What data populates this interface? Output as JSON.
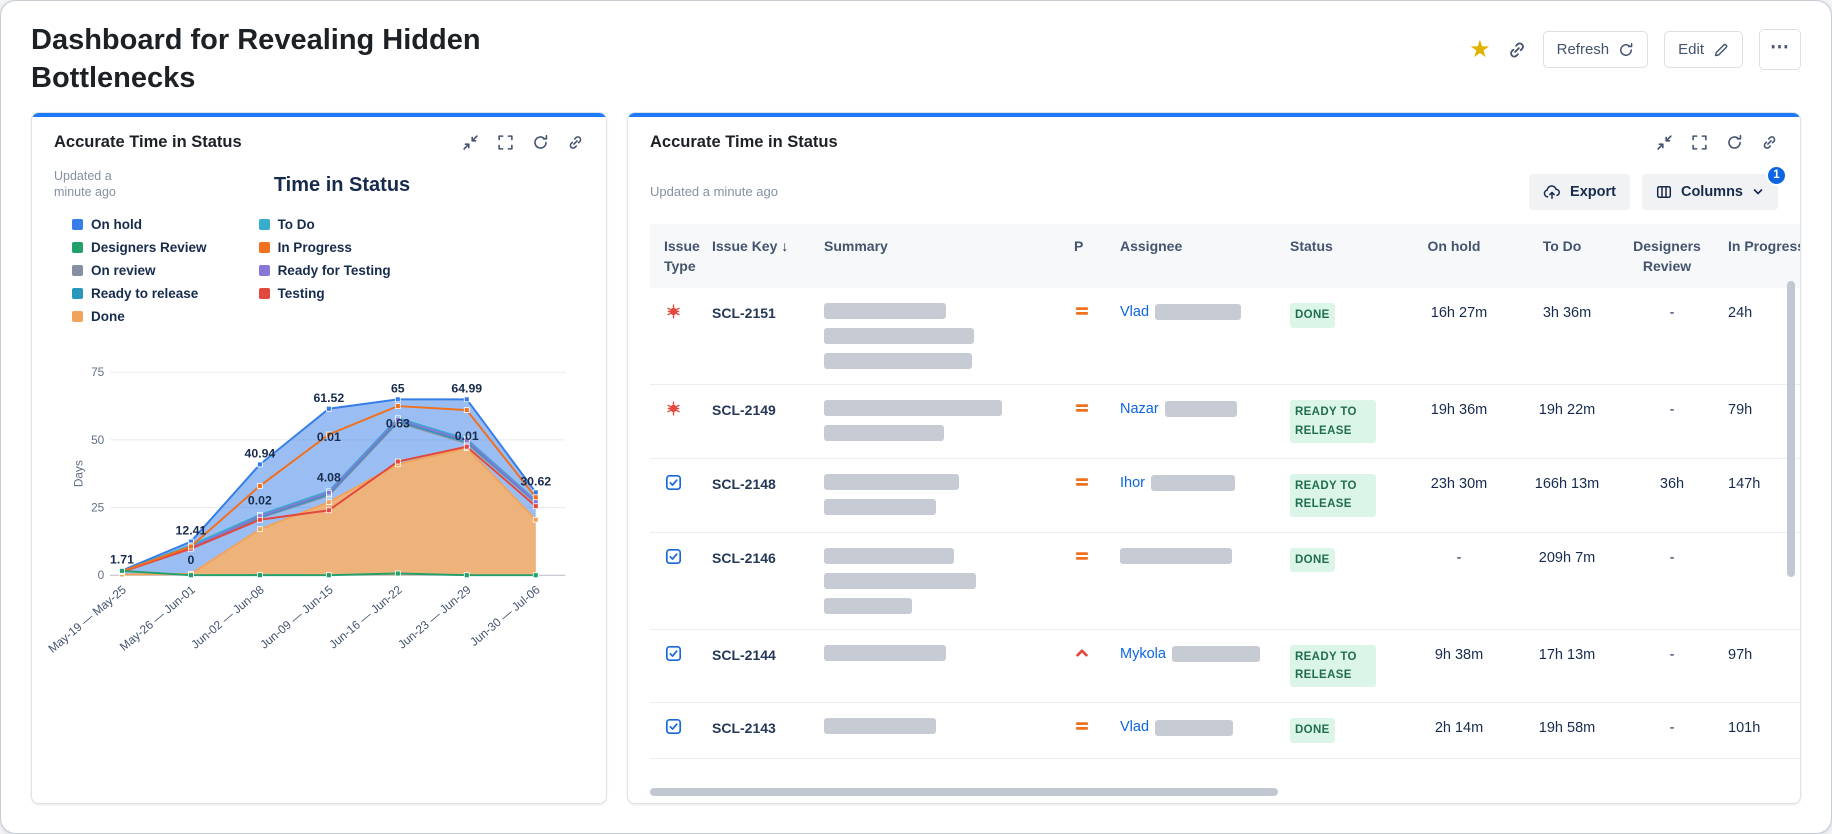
{
  "header": {
    "title": "Dashboard for Revealing Hidden Bottlenecks",
    "refresh_label": "Refresh",
    "edit_label": "Edit",
    "icons": {
      "favorite": "★",
      "more": "⋯"
    }
  },
  "colors": {
    "accent": "#1D7AFC",
    "link": "#0C66E4",
    "star": "#E2B203",
    "badge_bg": "#DBF6E9",
    "badge_text": "#216E4E",
    "redacted": "#C6CBD4"
  },
  "left_gadget": {
    "title": "Accurate Time in Status",
    "updated": "Updated a minute ago"
  },
  "chart_data": {
    "type": "area",
    "title": "Time in Status",
    "ylabel": "Days",
    "ylim": [
      0,
      75
    ],
    "yticks": [
      0,
      25,
      50,
      75
    ],
    "grid": true,
    "legend_position": "top-left",
    "categories": [
      "May-19 — May-25",
      "May-26 — Jun-01",
      "Jun-02 — Jun-08",
      "Jun-09 — Jun-15",
      "Jun-16 — Jun-22",
      "Jun-23 — Jun-29",
      "Jun-30 — Jul-06"
    ],
    "legend": [
      {
        "label": "On hold",
        "color": "#357DE8"
      },
      {
        "label": "Designers Review",
        "color": "#22A06B"
      },
      {
        "label": "On review",
        "color": "#8590A2"
      },
      {
        "label": "Ready to release",
        "color": "#2898BD"
      },
      {
        "label": "Done",
        "color": "#F0A45B"
      },
      {
        "label": "To Do",
        "color": "#36AECB"
      },
      {
        "label": "In Progress",
        "color": "#F0701E"
      },
      {
        "label": "Ready for Testing",
        "color": "#8777D9"
      },
      {
        "label": "Testing",
        "color": "#E2483D"
      }
    ],
    "series": [
      {
        "name": "On hold",
        "color": "#357DE8",
        "fill": "rgba(53,125,232,0.50)",
        "values": [
          1.71,
          12.41,
          40.94,
          61.52,
          65,
          64.99,
          30.62
        ]
      },
      {
        "name": "Done",
        "color": "#F0A45B",
        "fill": "rgba(249,178,106,0.88)",
        "values": [
          0.3,
          0.5,
          17,
          27,
          41,
          47,
          20.5
        ]
      },
      {
        "name": "On review",
        "color": "#8590A2",
        "values": [
          1.25,
          10,
          21.2,
          29.5,
          56.5,
          48.8,
          26.8
        ]
      },
      {
        "name": "Ready to release",
        "color": "#2898BD",
        "values": [
          1.35,
          10.4,
          21.5,
          30,
          57,
          49.3,
          27
        ]
      },
      {
        "name": "To Do",
        "color": "#36AECB",
        "values": [
          1.45,
          11,
          22.3,
          31,
          58,
          50.3,
          27.6
        ]
      },
      {
        "name": "Ready for Testing",
        "color": "#8777D9",
        "values": [
          1.3,
          10.2,
          21.8,
          30.5,
          57.5,
          49.8,
          27.2
        ]
      },
      {
        "name": "Testing",
        "color": "#E2483D",
        "values": [
          1.2,
          9.8,
          20.5,
          24,
          42,
          47.5,
          25.5
        ]
      },
      {
        "name": "In Progress",
        "color": "#F0701E",
        "values": [
          1.4,
          10.6,
          33,
          52,
          62.5,
          61,
          28.8
        ]
      },
      {
        "name": "Designers Review",
        "color": "#22A06B",
        "values": [
          1.6,
          0,
          0.02,
          0.01,
          0.63,
          0.01,
          0
        ]
      }
    ],
    "point_labels": [
      {
        "x": 0,
        "v": 1.71,
        "t": "1.71"
      },
      {
        "x": 1,
        "v": 12.41,
        "t": "12.41"
      },
      {
        "x": 1,
        "v": 1.5,
        "t": "0"
      },
      {
        "x": 2,
        "v": 40.94,
        "t": "40.94"
      },
      {
        "x": 2,
        "v": 23.5,
        "t": "0.02"
      },
      {
        "x": 3,
        "v": 61.52,
        "t": "61.52"
      },
      {
        "x": 3,
        "v": 47,
        "t": "0.01"
      },
      {
        "x": 3,
        "v": 32,
        "t": "4.08"
      },
      {
        "x": 4,
        "v": 65,
        "t": "65"
      },
      {
        "x": 4,
        "v": 52,
        "t": "0.63"
      },
      {
        "x": 5,
        "v": 64.99,
        "t": "64.99"
      },
      {
        "x": 5,
        "v": 47.5,
        "t": "0.01"
      },
      {
        "x": 6,
        "v": 30.62,
        "t": "30.62"
      }
    ]
  },
  "right_gadget": {
    "title": "Accurate Time in Status",
    "updated": "Updated a minute ago",
    "export_label": "Export",
    "columns_label": "Columns",
    "columns_badge": "1",
    "table": {
      "columns": [
        {
          "label": "Issue Type",
          "first": true
        },
        {
          "label": "Issue Key",
          "sort": "↓"
        },
        {
          "label": "Summary"
        },
        {
          "label": "P"
        },
        {
          "label": "Assignee"
        },
        {
          "label": "Status"
        },
        {
          "label": "On hold",
          "align": "center"
        },
        {
          "label": "To Do",
          "align": "center"
        },
        {
          "label": "Designers Review",
          "align": "center"
        },
        {
          "label": "In Progress",
          "truncated": true
        }
      ],
      "rows": [
        {
          "type": "bug",
          "key": "SCL-2151",
          "summary_bars": [
            122,
            150,
            148
          ],
          "priority": "medium",
          "assignee": "Vlad",
          "assignee_bar": 86,
          "status": "DONE",
          "on_hold": "16h 27m",
          "to_do": "3h 36m",
          "designers_review": "-",
          "in_progress": "24h"
        },
        {
          "type": "bug",
          "key": "SCL-2149",
          "summary_bars": [
            178,
            120
          ],
          "priority": "medium",
          "assignee": "Nazar",
          "assignee_bar": 72,
          "status": "READY TO RELEASE",
          "on_hold": "19h 36m",
          "to_do": "19h 22m",
          "designers_review": "-",
          "in_progress": "79h"
        },
        {
          "type": "task",
          "key": "SCL-2148",
          "summary_bars": [
            135,
            112
          ],
          "priority": "medium",
          "assignee": "Ihor",
          "assignee_bar": 84,
          "status": "READY TO RELEASE",
          "on_hold": "23h 30m",
          "to_do": "166h 13m",
          "designers_review": "36h",
          "in_progress": "147h"
        },
        {
          "type": "task",
          "key": "SCL-2146",
          "summary_bars": [
            130,
            152,
            88
          ],
          "priority": "medium",
          "assignee": "",
          "assignee_bar": 112,
          "status": "DONE",
          "on_hold": "-",
          "to_do": "209h 7m",
          "designers_review": "-",
          "in_progress": ""
        },
        {
          "type": "task",
          "key": "SCL-2144",
          "summary_bars": [
            122
          ],
          "priority": "high",
          "assignee": "Mykola",
          "assignee_bar": 88,
          "status": "READY TO RELEASE",
          "on_hold": "9h 38m",
          "to_do": "17h 13m",
          "designers_review": "-",
          "in_progress": "97h"
        },
        {
          "type": "task",
          "key": "SCL-2143",
          "summary_bars": [
            112
          ],
          "priority": "medium",
          "assignee": "Vlad",
          "assignee_bar": 78,
          "status": "DONE",
          "on_hold": "2h 14m",
          "to_do": "19h 58m",
          "designers_review": "-",
          "in_progress": "101h"
        }
      ]
    }
  }
}
